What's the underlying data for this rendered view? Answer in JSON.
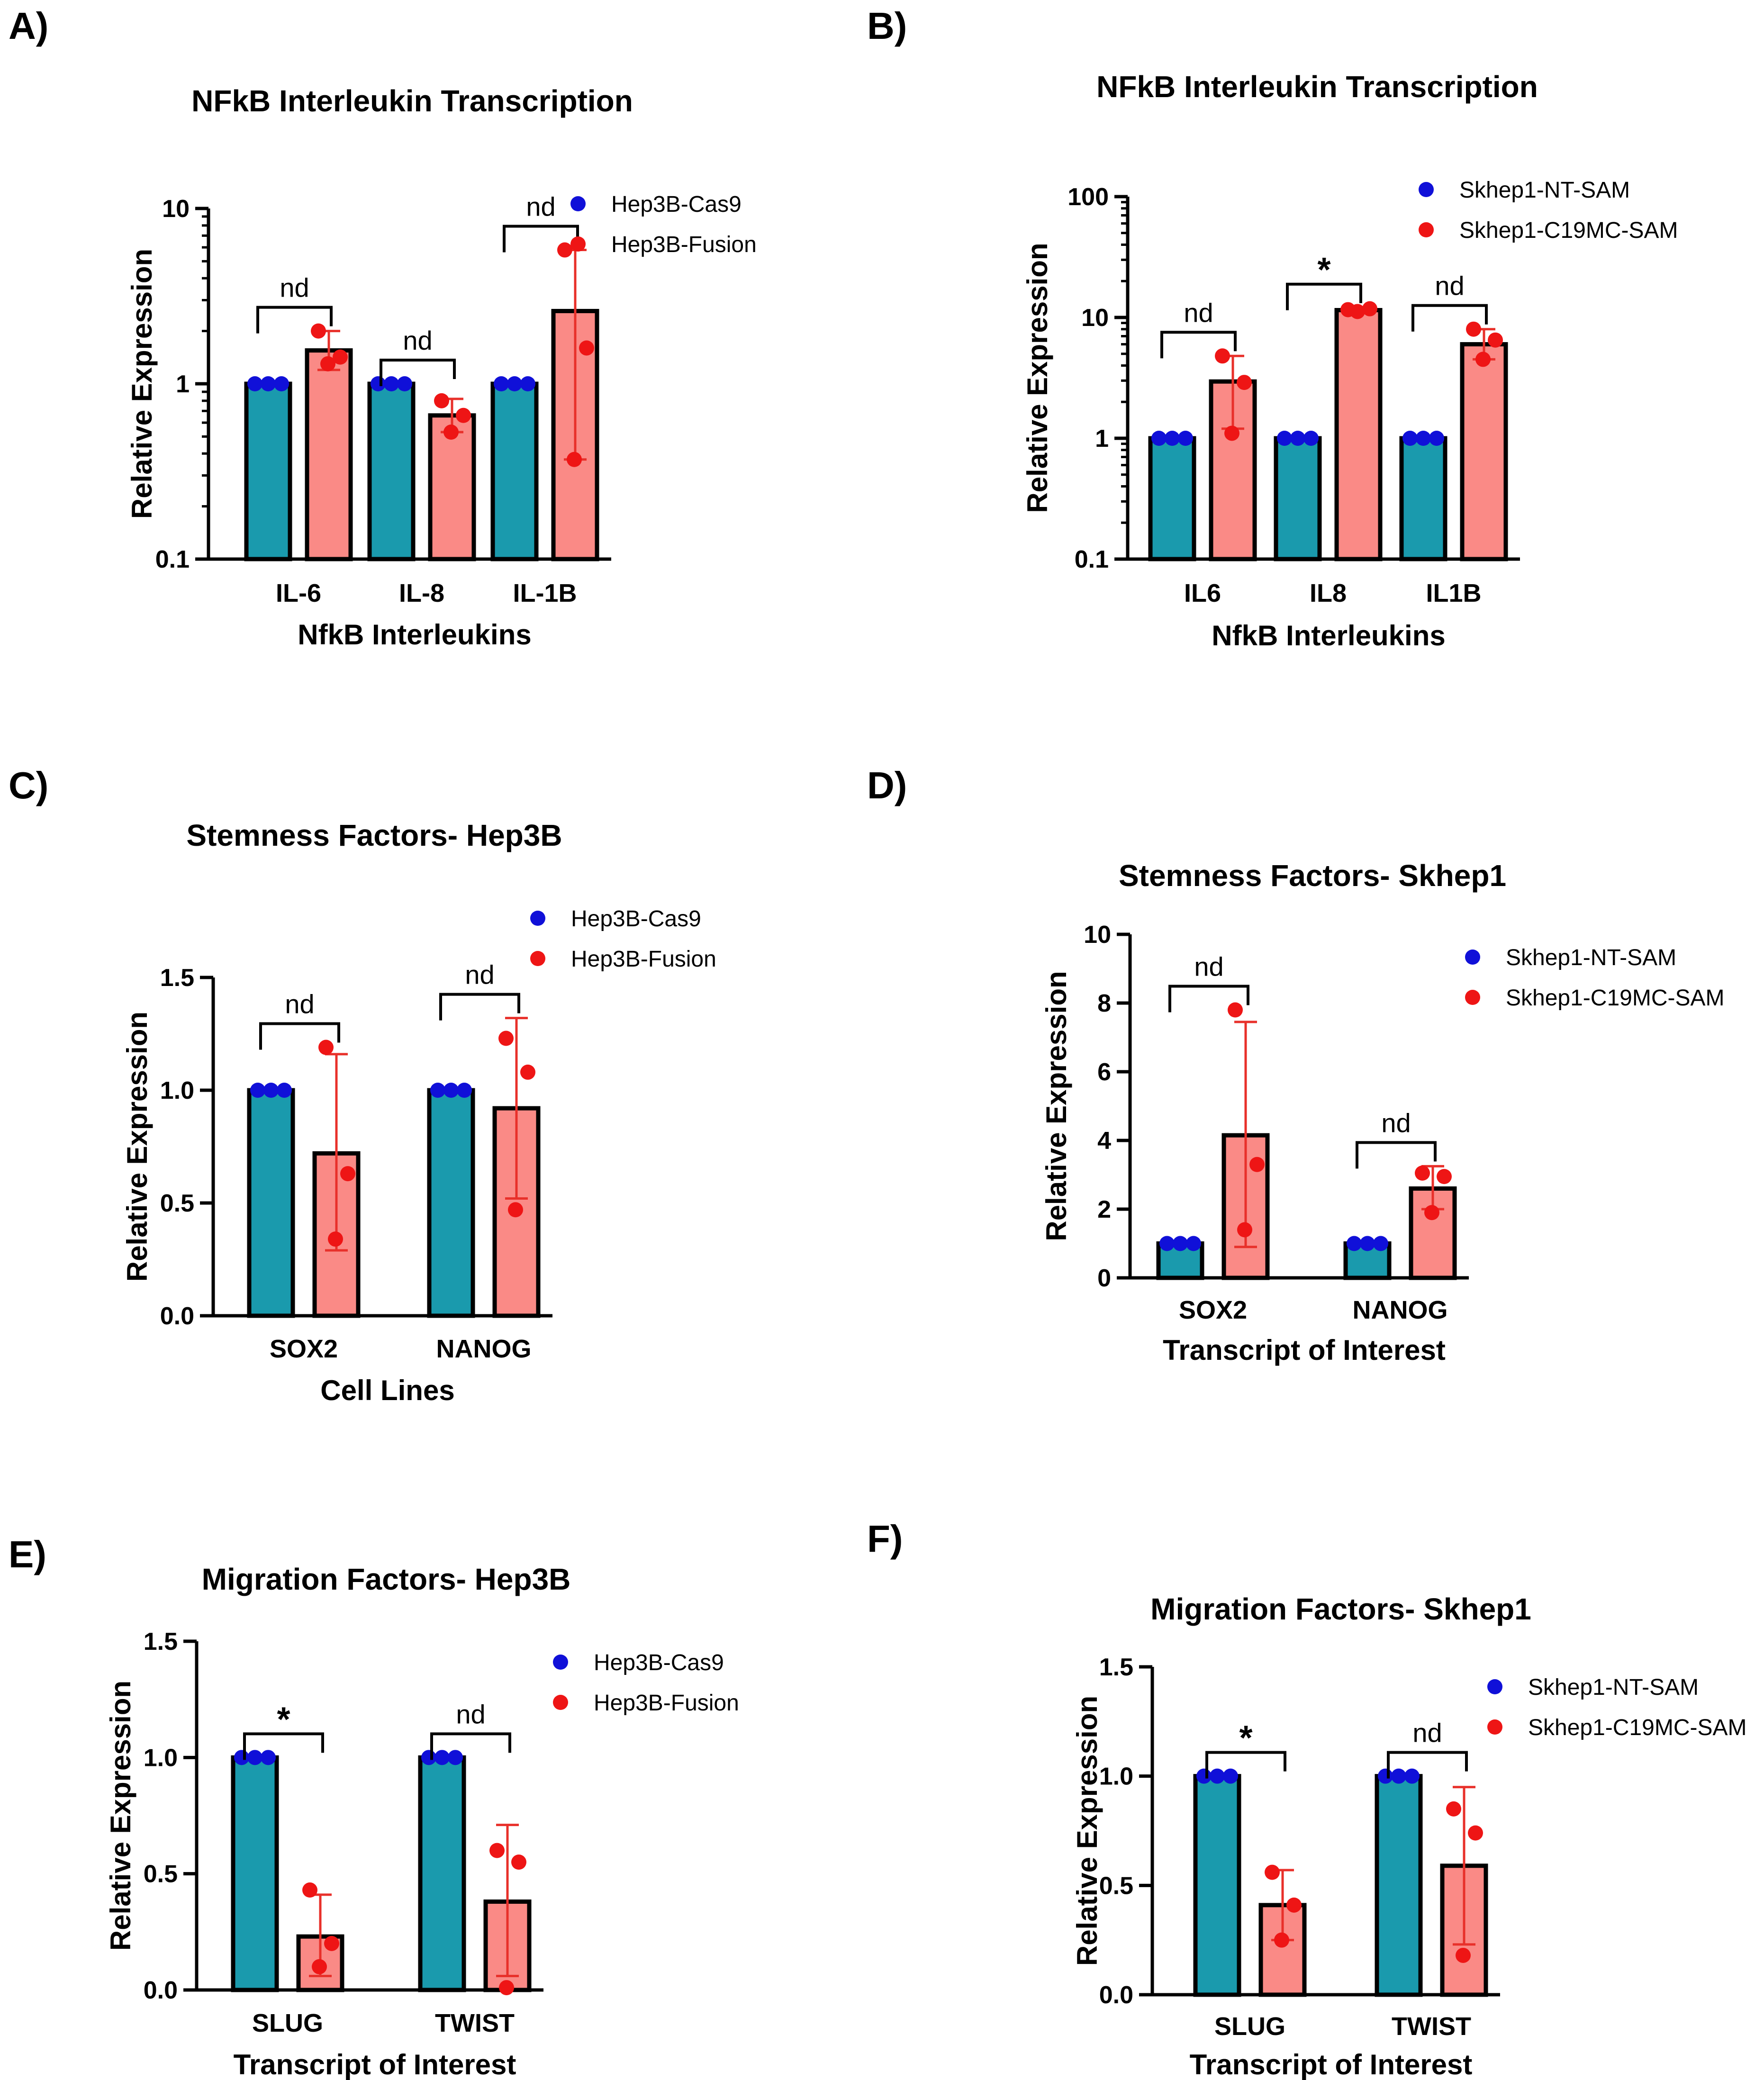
{
  "colors": {
    "control_bar": "#1a9aad",
    "treatment_bar": "#fa8a86",
    "control_dot": "#1010d8",
    "treatment_dot": "#ee1515",
    "error_bar": "#e8302a",
    "axis": "#000000"
  },
  "chart_data": [
    {
      "panel": "A)",
      "type": "bar",
      "scale": "log",
      "title": "NFkB Interleukin Transcription",
      "xlabel": "NfkB Interleukins",
      "ylabel": "Relative Expression",
      "ylim": [
        0.1,
        10
      ],
      "yticks": [
        0.1,
        1,
        10
      ],
      "ytick_labels": [
        "0.1",
        "1",
        "10"
      ],
      "categories": [
        "IL-6",
        "IL-8",
        "IL-1B"
      ],
      "legend": [
        "Hep3B-Cas9",
        "Hep3B-Fusion"
      ],
      "series": [
        {
          "name": "Hep3B-Cas9",
          "values": [
            1,
            1,
            1
          ],
          "points": [
            [
              1,
              1,
              1
            ],
            [
              1,
              1,
              1
            ],
            [
              1,
              1,
              1
            ]
          ]
        },
        {
          "name": "Hep3B-Fusion",
          "values": [
            1.55,
            0.66,
            2.6
          ],
          "error": [
            [
              1.2,
              2.0
            ],
            [
              0.53,
              0.82
            ],
            [
              0.37,
              5.8
            ]
          ],
          "points": [
            [
              2.0,
              1.42,
              1.3
            ],
            [
              0.8,
              0.66,
              0.53
            ],
            [
              5.8,
              1.6,
              0.37
            ]
          ]
        }
      ],
      "significance": [
        "nd",
        "nd",
        "nd"
      ]
    },
    {
      "panel": "B)",
      "type": "bar",
      "scale": "log",
      "title": "NFkB Interleukin Transcription",
      "xlabel": "NfkB Interleukins",
      "ylabel": "Relative Expression",
      "ylim": [
        0.1,
        100
      ],
      "yticks": [
        0.1,
        1,
        10,
        100
      ],
      "ytick_labels": [
        "0.1",
        "1",
        "10",
        "100"
      ],
      "categories": [
        "IL6",
        "IL8",
        "IL1B"
      ],
      "legend": [
        "Skhep1-NT-SAM",
        "Skhep1-C19MC-SAM"
      ],
      "series": [
        {
          "name": "Skhep1-NT-SAM",
          "values": [
            1,
            1,
            1
          ],
          "points": [
            [
              1,
              1,
              1
            ],
            [
              1,
              1,
              1
            ],
            [
              1,
              1,
              1
            ]
          ]
        },
        {
          "name": "Skhep1-C19MC-SAM",
          "values": [
            2.95,
            11.5,
            6.0
          ],
          "error": [
            [
              1.2,
              4.8
            ],
            [
              11.0,
              12.0
            ],
            [
              4.5,
              8.0
            ]
          ],
          "points": [
            [
              4.8,
              2.9,
              1.1
            ],
            [
              11.6,
              11.8,
              11.2
            ],
            [
              8.0,
              6.5,
              4.5
            ]
          ]
        }
      ],
      "significance": [
        "nd",
        "*",
        "nd"
      ]
    },
    {
      "panel": "C)",
      "type": "bar",
      "scale": "linear",
      "title": "Stemness Factors- Hep3B",
      "xlabel": "Cell Lines",
      "ylabel": "Relative Expression",
      "ylim": [
        0,
        1.5
      ],
      "yticks": [
        0,
        0.5,
        1.0,
        1.5
      ],
      "ytick_labels": [
        "0.0",
        "0.5",
        "1.0",
        "1.5"
      ],
      "categories": [
        "SOX2",
        "NANOG"
      ],
      "legend": [
        "Hep3B-Cas9",
        "Hep3B-Fusion"
      ],
      "series": [
        {
          "name": "Hep3B-Cas9",
          "values": [
            1,
            1
          ],
          "points": [
            [
              1,
              1,
              1
            ],
            [
              1,
              1,
              1
            ]
          ]
        },
        {
          "name": "Hep3B-Fusion",
          "values": [
            0.72,
            0.92
          ],
          "error": [
            [
              0.29,
              1.16
            ],
            [
              0.52,
              1.32
            ]
          ],
          "points": [
            [
              1.19,
              0.63,
              0.34
            ],
            [
              1.23,
              1.08,
              0.47
            ]
          ]
        }
      ],
      "significance": [
        "nd",
        "nd"
      ]
    },
    {
      "panel": "D)",
      "type": "bar",
      "scale": "linear",
      "title": "Stemness Factors- Skhep1",
      "xlabel": "Transcript of Interest",
      "ylabel": "Relative Expression",
      "ylim": [
        0,
        10
      ],
      "yticks": [
        0,
        2,
        4,
        6,
        8,
        10
      ],
      "ytick_labels": [
        "0",
        "2",
        "4",
        "6",
        "8",
        "10"
      ],
      "categories": [
        "SOX2",
        "NANOG"
      ],
      "legend": [
        "Skhep1-NT-SAM",
        "Skhep1-C19MC-SAM"
      ],
      "series": [
        {
          "name": "Skhep1-NT-SAM",
          "values": [
            1,
            1
          ],
          "points": [
            [
              1,
              1,
              1
            ],
            [
              1,
              1,
              1
            ]
          ]
        },
        {
          "name": "Skhep1-C19MC-SAM",
          "values": [
            4.15,
            2.6
          ],
          "error": [
            [
              0.9,
              7.45
            ],
            [
              2.0,
              3.25
            ]
          ],
          "points": [
            [
              7.8,
              3.3,
              1.4
            ],
            [
              3.05,
              2.95,
              1.9
            ]
          ]
        }
      ],
      "significance": [
        "nd",
        "nd"
      ]
    },
    {
      "panel": "E)",
      "type": "bar",
      "scale": "linear",
      "title": "Migration Factors- Hep3B",
      "xlabel": "Transcript of Interest",
      "ylabel": "Relative Expression",
      "ylim": [
        0,
        1.5
      ],
      "yticks": [
        0,
        0.5,
        1.0,
        1.5
      ],
      "ytick_labels": [
        "0.0",
        "0.5",
        "1.0",
        "1.5"
      ],
      "categories": [
        "SLUG",
        "TWIST"
      ],
      "legend": [
        "Hep3B-Cas9",
        "Hep3B-Fusion"
      ],
      "series": [
        {
          "name": "Hep3B-Cas9",
          "values": [
            1,
            1
          ],
          "points": [
            [
              1,
              1,
              1
            ],
            [
              1,
              1,
              1
            ]
          ]
        },
        {
          "name": "Hep3B-Fusion",
          "values": [
            0.23,
            0.38
          ],
          "error": [
            [
              0.06,
              0.41
            ],
            [
              0.06,
              0.71
            ]
          ],
          "points": [
            [
              0.43,
              0.2,
              0.1
            ],
            [
              0.6,
              0.55,
              0.01
            ]
          ]
        }
      ],
      "significance": [
        "*",
        "nd"
      ]
    },
    {
      "panel": "F)",
      "type": "bar",
      "scale": "linear",
      "title": "Migration Factors- Skhep1",
      "xlabel": "Transcript of Interest",
      "ylabel": "Relative Expression",
      "ylim": [
        0,
        1.5
      ],
      "yticks": [
        0,
        0.5,
        1.0,
        1.5
      ],
      "ytick_labels": [
        "0.0",
        "0.5",
        "1.0",
        "1.5"
      ],
      "categories": [
        "SLUG",
        "TWIST"
      ],
      "legend": [
        "Skhep1-NT-SAM",
        "Skhep1-C19MC-SAM"
      ],
      "series": [
        {
          "name": "Skhep1-NT-SAM",
          "values": [
            1,
            1
          ],
          "points": [
            [
              1,
              1,
              1
            ],
            [
              1,
              1,
              1
            ]
          ]
        },
        {
          "name": "Skhep1-C19MC-SAM",
          "values": [
            0.41,
            0.59
          ],
          "error": [
            [
              0.25,
              0.57
            ],
            [
              0.23,
              0.95
            ]
          ],
          "points": [
            [
              0.56,
              0.41,
              0.25
            ],
            [
              0.85,
              0.74,
              0.18
            ]
          ]
        }
      ],
      "significance": [
        "*",
        "nd"
      ]
    }
  ]
}
